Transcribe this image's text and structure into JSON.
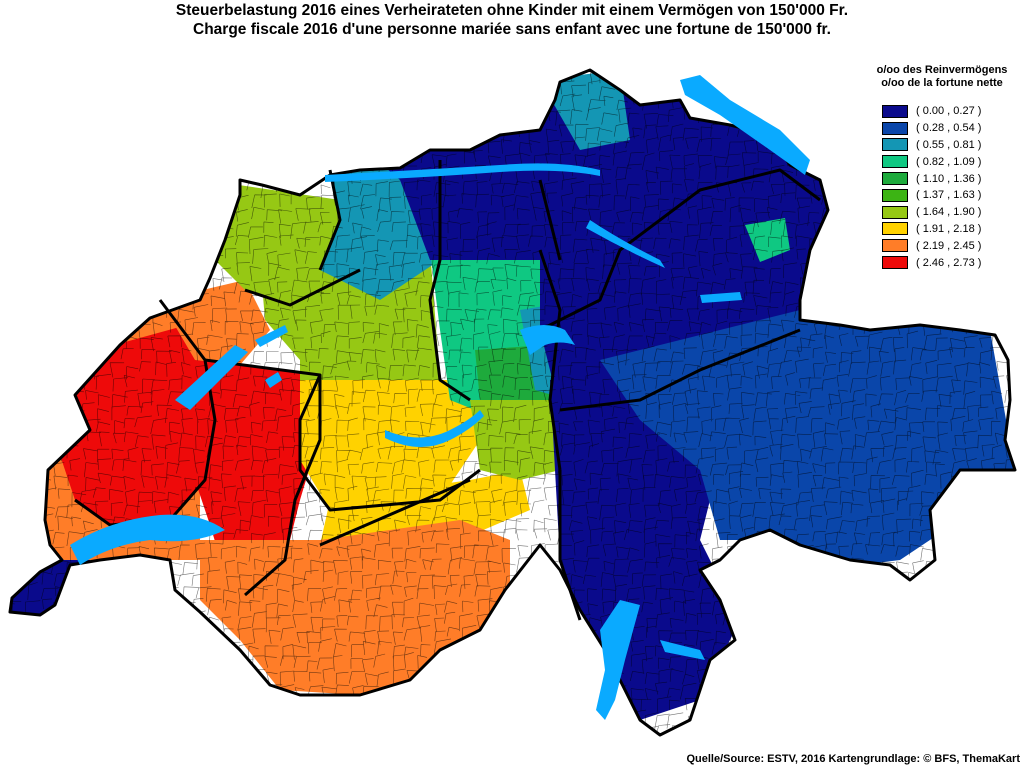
{
  "title_de": "Steuerbelastung 2016 eines Verheirateten ohne Kinder mit einem Vermögen von 150'000 Fr.",
  "title_fr": "Charge fiscale 2016 d'une personne mariée sans enfant avec une fortune de 150'000 fr.",
  "legend": {
    "heading_de": "o/oo des Reinvermögens",
    "heading_fr": "o/oo de la fortune nette",
    "classes": [
      {
        "label": "( 0.00 , 0.27 )",
        "color": "#0a0a8c"
      },
      {
        "label": "( 0.28 , 0.54 )",
        "color": "#0a46aa"
      },
      {
        "label": "( 0.55 , 0.81 )",
        "color": "#1496b4"
      },
      {
        "label": "( 0.82 , 1.09 )",
        "color": "#0fc882"
      },
      {
        "label": "( 1.10 , 1.36 )",
        "color": "#1eaa3c"
      },
      {
        "label": "( 1.37 , 1.63 )",
        "color": "#3cb414"
      },
      {
        "label": "( 1.64 , 1.90 )",
        "color": "#96c814"
      },
      {
        "label": "( 1.91 , 2.18 )",
        "color": "#ffd200"
      },
      {
        "label": "( 2.19 , 2.45 )",
        "color": "#ff7d28"
      },
      {
        "label": "( 2.46 , 2.73 )",
        "color": "#ee0a0a"
      }
    ]
  },
  "source": "Quelle/Source: ESTV, 2016 Kartengrundlage: © BFS, ThemaKart",
  "lake_color": "#0aaaff"
}
